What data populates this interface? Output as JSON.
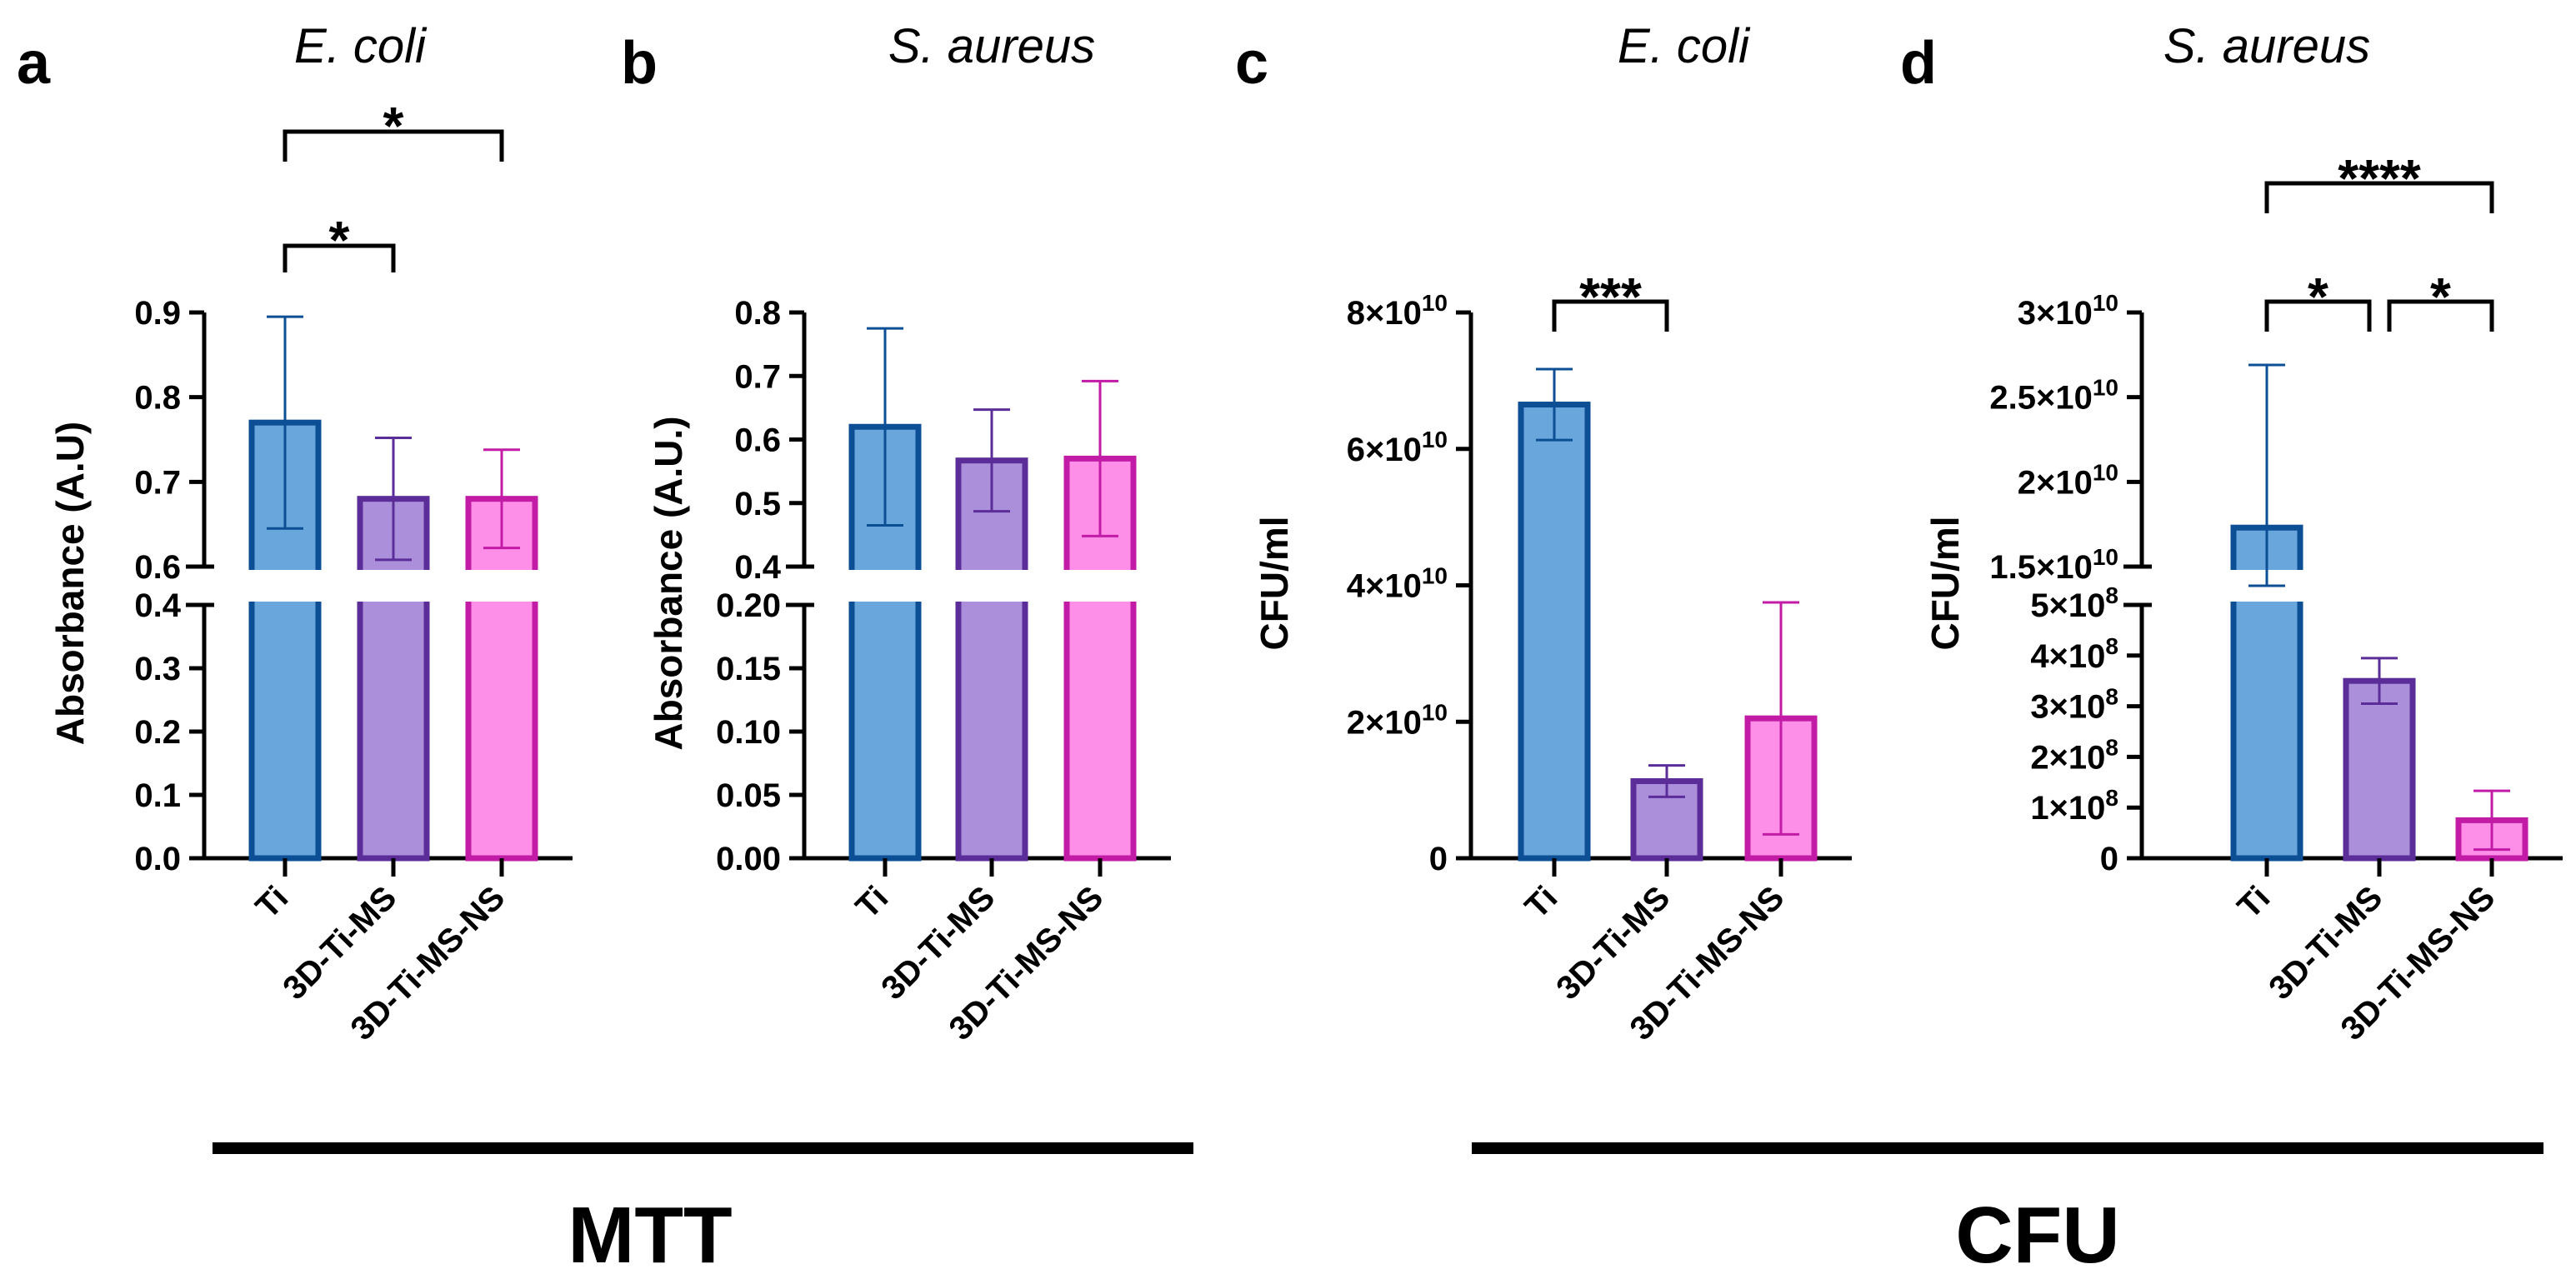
{
  "colors": {
    "Ti": {
      "fill": "#69a6db",
      "stroke": "#0c4f94"
    },
    "3D-Ti-MS": {
      "fill": "#ab8fdb",
      "stroke": "#5b2d98"
    },
    "3D-Ti-MS-NS": {
      "fill": "#fd8fe8",
      "stroke": "#c21ba6"
    }
  },
  "groups": [
    {
      "label": "MTT"
    },
    {
      "label": "CFU"
    }
  ],
  "chart_data": [
    {
      "panel": "a",
      "type": "bar",
      "title": "E. coli",
      "ylabel": "Absorbance (A.U)",
      "categories": [
        "Ti",
        "3D-Ti-MS",
        "3D-Ti-MS-NS"
      ],
      "values": [
        0.77,
        0.68,
        0.68
      ],
      "errors": [
        0.125,
        0.072,
        0.058
      ],
      "broken_axis": true,
      "lower": {
        "range": [
          0,
          0.4
        ],
        "ticks": [
          "0.0",
          "0.1",
          "0.2",
          "0.3",
          "0.4"
        ],
        "tick_values": [
          0,
          0.1,
          0.2,
          0.3,
          0.4
        ]
      },
      "upper": {
        "range": [
          0.6,
          0.9
        ],
        "ticks": [
          "0.6",
          "0.7",
          "0.8",
          "0.9"
        ],
        "tick_values": [
          0.6,
          0.7,
          0.8,
          0.9
        ]
      },
      "significance": [
        {
          "from": 0,
          "to": 1,
          "label": "*"
        },
        {
          "from": 0,
          "to": 2,
          "label": "*"
        }
      ]
    },
    {
      "panel": "b",
      "type": "bar",
      "title": "S. aureus",
      "ylabel": "Absorbance (A.U.)",
      "categories": [
        "Ti",
        "3D-Ti-MS",
        "3D-Ti-MS-NS"
      ],
      "values": [
        0.62,
        0.567,
        0.57
      ],
      "errors": [
        0.155,
        0.08,
        0.122
      ],
      "broken_axis": true,
      "lower": {
        "range": [
          0,
          0.2
        ],
        "ticks": [
          "0.00",
          "0.05",
          "0.10",
          "0.15",
          "0.20"
        ],
        "tick_values": [
          0,
          0.05,
          0.1,
          0.15,
          0.2
        ]
      },
      "upper": {
        "range": [
          0.4,
          0.8
        ],
        "ticks": [
          "0.4",
          "0.5",
          "0.6",
          "0.7",
          "0.8"
        ],
        "tick_values": [
          0.4,
          0.5,
          0.6,
          0.7,
          0.8
        ]
      },
      "significance": []
    },
    {
      "panel": "c",
      "type": "bar",
      "title": "E. coli",
      "ylabel": "CFU/ml",
      "categories": [
        "Ti",
        "3D-Ti-MS",
        "3D-Ti-MS-NS"
      ],
      "values": [
        66500000000,
        11300000000,
        20500000000
      ],
      "errors": [
        5200000000,
        2300000000,
        17000000000
      ],
      "broken_axis": false,
      "axis": {
        "range": [
          0,
          80000000000
        ],
        "ticks": [
          {
            "m": "0",
            "e": ""
          },
          {
            "m": "2×10",
            "e": "10"
          },
          {
            "m": "4×10",
            "e": "10"
          },
          {
            "m": "6×10",
            "e": "10"
          },
          {
            "m": "8×10",
            "e": "10"
          }
        ],
        "tick_values": [
          0,
          20000000000,
          40000000000,
          60000000000,
          80000000000
        ]
      },
      "significance": [
        {
          "from": 0,
          "to": 1,
          "label": "***"
        }
      ]
    },
    {
      "panel": "d",
      "type": "bar",
      "title": "S. aureus",
      "ylabel": "CFU/ml",
      "categories": [
        "Ti",
        "3D-Ti-MS",
        "3D-Ti-MS-NS"
      ],
      "values": [
        17300000000,
        350000000,
        75000000
      ],
      "errors": [
        9600000000,
        45000000,
        58000000
      ],
      "broken_axis": true,
      "lower": {
        "range": [
          0,
          500000000
        ],
        "ticks": [
          {
            "m": "0",
            "e": ""
          },
          {
            "m": "1×10",
            "e": "8"
          },
          {
            "m": "2×10",
            "e": "8"
          },
          {
            "m": "3×10",
            "e": "8"
          },
          {
            "m": "4×10",
            "e": "8"
          },
          {
            "m": "5×10",
            "e": "8"
          }
        ],
        "tick_values": [
          0,
          100000000,
          200000000,
          300000000,
          400000000,
          500000000
        ]
      },
      "upper": {
        "range": [
          15000000000,
          30000000000
        ],
        "ticks": [
          {
            "m": "1.5×10",
            "e": "10"
          },
          {
            "m": "2×10",
            "e": "10"
          },
          {
            "m": "2.5×10",
            "e": "10"
          },
          {
            "m": "3×10",
            "e": "10"
          }
        ],
        "tick_values": [
          15000000000,
          20000000000,
          25000000000,
          30000000000
        ]
      },
      "significance": [
        {
          "from": 0,
          "to": 1,
          "label": "*"
        },
        {
          "from": 1,
          "to": 2,
          "label": "*"
        },
        {
          "from": 0,
          "to": 2,
          "label": "****"
        }
      ]
    }
  ]
}
